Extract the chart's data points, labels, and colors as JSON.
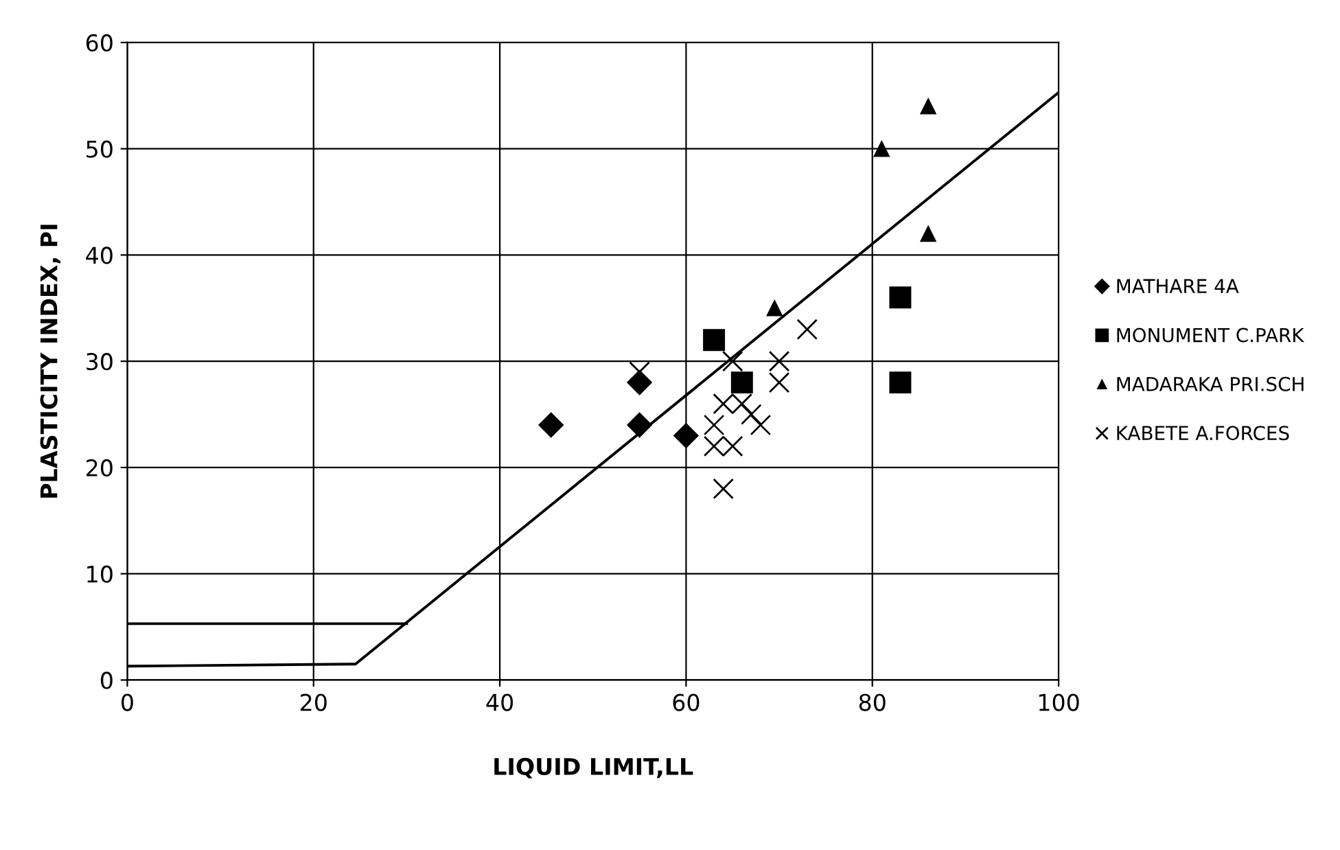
{
  "chart_data": {
    "type": "scatter",
    "xlabel": "LIQUID LIMIT,LL",
    "ylabel": "PLASTICITY INDEX, PI",
    "xlim": [
      0,
      100
    ],
    "ylim": [
      0,
      60
    ],
    "xticks": [
      0,
      20,
      40,
      60,
      80,
      100
    ],
    "yticks": [
      0,
      10,
      20,
      30,
      40,
      50,
      60
    ],
    "grid": true,
    "legend": "right",
    "series": [
      {
        "name": "MATHARE 4A",
        "color": "#000000",
        "marker": "diamond",
        "x": [
          45.5,
          55,
          55,
          60
        ],
        "values": [
          24,
          24,
          28,
          23
        ]
      },
      {
        "name": "MONUMENT C.PARK",
        "color": "#000000",
        "marker": "square",
        "x": [
          63,
          66,
          83,
          83
        ],
        "values": [
          32,
          28,
          36,
          28
        ]
      },
      {
        "name": "MADARAKA PRI.SCH",
        "color": "#000000",
        "marker": "triangle",
        "x": [
          86,
          81,
          86,
          69.5
        ],
        "values": [
          54,
          50,
          42,
          35
        ]
      },
      {
        "name": "KABETE A.FORCES",
        "color": "#000000",
        "marker": "cross",
        "x": [
          55,
          73,
          65,
          70,
          70,
          64,
          67,
          68,
          63,
          63,
          65,
          64,
          66
        ],
        "values": [
          29,
          33,
          30,
          30,
          28,
          26,
          25,
          24,
          24,
          22,
          22,
          18,
          26
        ]
      },
      {
        "type": "line",
        "color": "#000000",
        "marker": "none",
        "x": [
          0,
          24.5,
          100
        ],
        "values": [
          1.3,
          1.5,
          55.3
        ]
      },
      {
        "type": "line",
        "color": "#000000",
        "marker": "none",
        "x": [
          0,
          30
        ],
        "values": [
          5.3,
          5.3
        ]
      }
    ]
  }
}
